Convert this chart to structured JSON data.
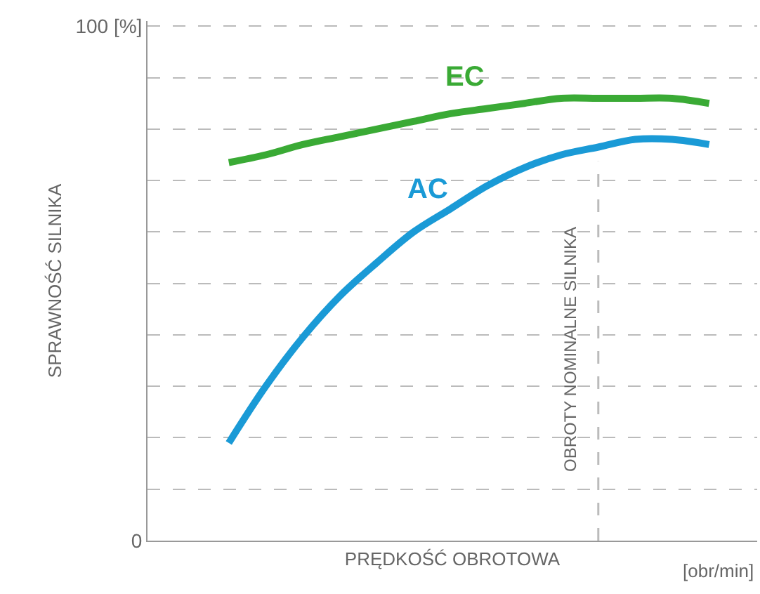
{
  "chart_data": {
    "type": "line",
    "xlabel": "PRĘDKOŚĆ OBROTOWA",
    "ylabel": "SPRAWNOŚĆ SILNIKA",
    "categories": [
      null,
      null,
      null,
      null,
      null,
      null,
      null,
      null,
      null,
      null,
      null,
      null,
      null,
      null
    ],
    "series": [
      {
        "name": "EC",
        "color": "#3aaa35",
        "values": [
          73.5,
          75,
          77,
          78.5,
          80,
          81.5,
          83,
          84,
          85,
          86,
          86,
          86,
          86,
          85
        ]
      },
      {
        "name": "AC",
        "color": "#1a9ad6",
        "values": [
          19,
          30,
          39.5,
          47.5,
          54,
          60,
          64.5,
          69,
          72.5,
          75,
          76.5,
          78,
          78,
          77
        ]
      }
    ],
    "ylim": [
      0,
      101
    ],
    "yticks": [
      {
        "value": 0,
        "label": "0"
      },
      {
        "value": 10,
        "label": null
      },
      {
        "value": 20,
        "label": null
      },
      {
        "value": 30,
        "label": null
      },
      {
        "value": 40,
        "label": null
      },
      {
        "value": 50,
        "label": null
      },
      {
        "value": 60,
        "label": null
      },
      {
        "value": 70,
        "label": null
      },
      {
        "value": 80,
        "label": null
      },
      {
        "value": 90,
        "label": null
      },
      {
        "value": 100,
        "label": "100 [%]"
      }
    ],
    "grid": "y",
    "legend": false,
    "marker": "none",
    "line_style": "solid",
    "annotations": [
      "[obr/min]",
      "OBROTY NOMINALNE SILNIKA"
    ]
  }
}
